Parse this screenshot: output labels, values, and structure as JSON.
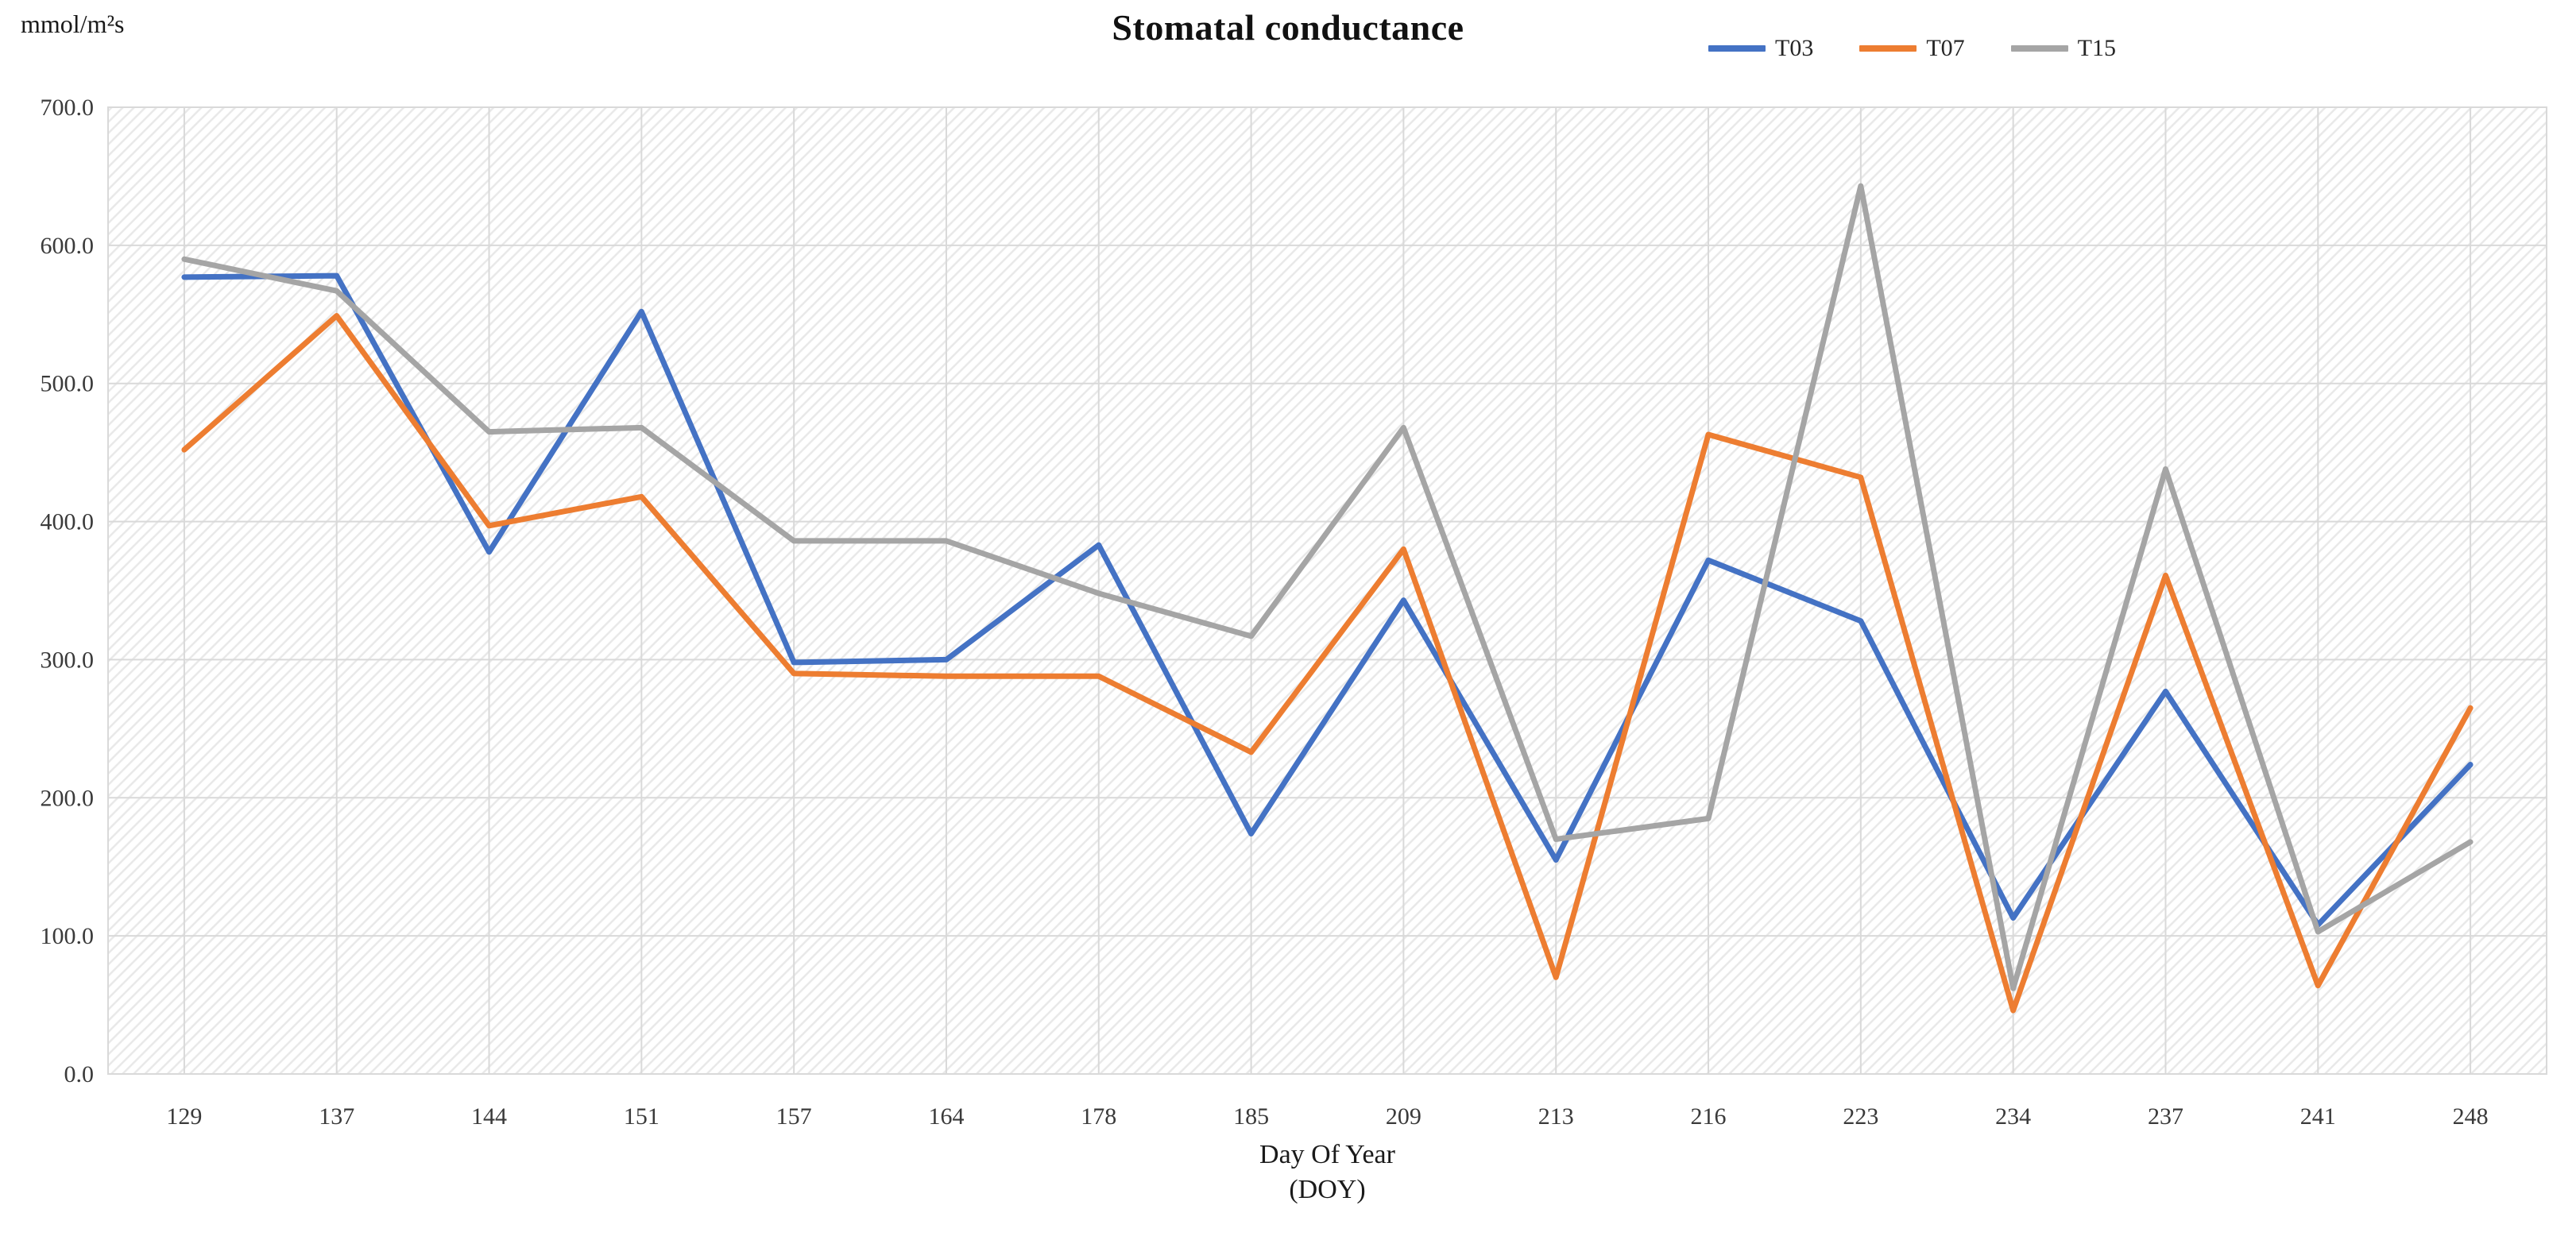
{
  "header": {
    "title": "Stomatal conductance",
    "y_unit_label": "mmol/m²s"
  },
  "x_axis": {
    "label_line1": "Day Of Year",
    "label_line2": "(DOY)"
  },
  "y_axis": {
    "tick_labels": [
      "700.0",
      "600.0",
      "500.0",
      "400.0",
      "300.0",
      "200.0",
      "100.0",
      "0.0"
    ]
  },
  "colors": {
    "t03_blue": "#4472C4",
    "t07_orange": "#ED7D31",
    "t15_gray": "#A5A5A5",
    "gridline": "#D9D9D9",
    "hatch": "#E8E8E8",
    "tick_text": "#3A3A3A"
  },
  "chart_data": {
    "type": "line",
    "title": "Stomatal conductance",
    "ylabel": "mmol/m²s",
    "xlabel": "Day Of Year (DOY)",
    "ylim": [
      0,
      700
    ],
    "y_tick_interval": 100,
    "grid": true,
    "legend_position": "top-right",
    "categories": [
      129,
      137,
      144,
      151,
      157,
      164,
      178,
      185,
      209,
      213,
      216,
      223,
      234,
      237,
      241,
      248
    ],
    "series": [
      {
        "name": "T03",
        "color": "#4472C4",
        "values": [
          577,
          578,
          378,
          552,
          298,
          300,
          383,
          174,
          343,
          155,
          372,
          328,
          113,
          277,
          108,
          224
        ]
      },
      {
        "name": "T07",
        "color": "#ED7D31",
        "values": [
          452,
          549,
          397,
          418,
          290,
          288,
          288,
          233,
          380,
          70,
          463,
          432,
          46,
          361,
          64,
          265
        ]
      },
      {
        "name": "T15",
        "color": "#A5A5A5",
        "values": [
          590,
          567,
          465,
          468,
          386,
          386,
          348,
          317,
          468,
          170,
          185,
          643,
          62,
          438,
          103,
          168
        ]
      }
    ]
  }
}
